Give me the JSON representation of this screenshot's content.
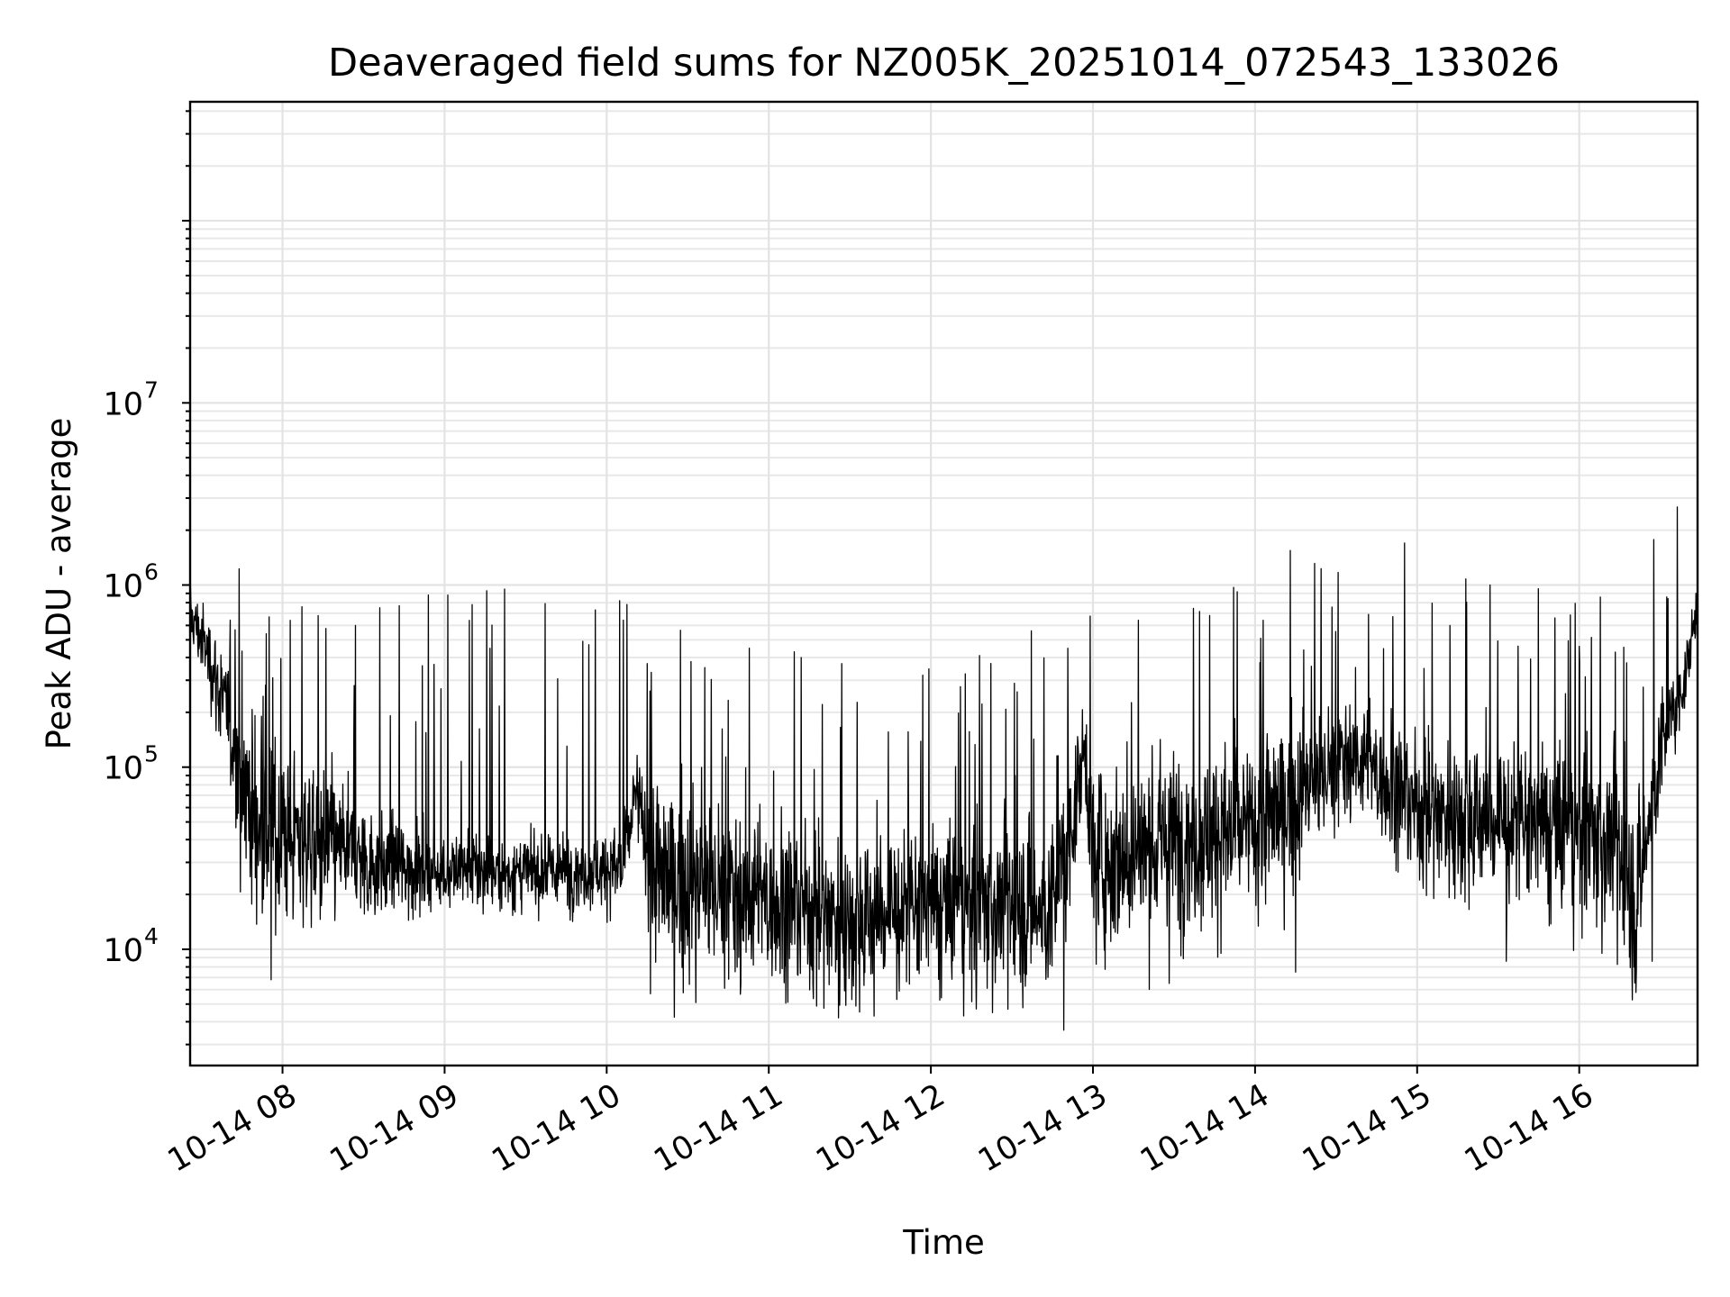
{
  "chart_data": {
    "type": "line",
    "title": "Deaveraged field sums for NZ005K_20251014_072543_133026",
    "xlabel": "Time",
    "ylabel": "Peak ADU - average",
    "yscale": "log",
    "ylim": [
      2300,
      450000000
    ],
    "xlim_hours": [
      7.43,
      16.73
    ],
    "grid": true,
    "legend": "none",
    "line_color": "#000000",
    "x_ticks": [
      {
        "hour": 8,
        "label": "10-14 08"
      },
      {
        "hour": 9,
        "label": "10-14 09"
      },
      {
        "hour": 10,
        "label": "10-14 10"
      },
      {
        "hour": 11,
        "label": "10-14 11"
      },
      {
        "hour": 12,
        "label": "10-14 12"
      },
      {
        "hour": 13,
        "label": "10-14 13"
      },
      {
        "hour": 14,
        "label": "10-14 14"
      },
      {
        "hour": 15,
        "label": "10-14 15"
      },
      {
        "hour": 16,
        "label": "10-14 16"
      }
    ],
    "y_ticks": [
      {
        "value": 10000,
        "base": "10",
        "exp": "4"
      },
      {
        "value": 100000,
        "base": "10",
        "exp": "5"
      },
      {
        "value": 1000000,
        "base": "10",
        "exp": "6"
      },
      {
        "value": 10000000,
        "base": "10",
        "exp": "7"
      }
    ],
    "series": [
      {
        "name": "deaveraged field sum",
        "sample_interval_hours": 0.0025,
        "profile": [
          {
            "t": 7.43,
            "base": 700000,
            "spread": 0.15
          },
          {
            "t": 7.55,
            "base": 400000,
            "spread": 0.2
          },
          {
            "t": 7.65,
            "base": 200000,
            "spread": 0.3
          },
          {
            "t": 7.75,
            "base": 90000,
            "spread": 0.45
          },
          {
            "t": 7.85,
            "base": 45000,
            "spread": 0.5
          },
          {
            "t": 8.2,
            "base": 40000,
            "spread": 0.4
          },
          {
            "t": 8.6,
            "base": 28000,
            "spread": 0.25
          },
          {
            "t": 9.5,
            "base": 26000,
            "spread": 0.18
          },
          {
            "t": 10.1,
            "base": 28000,
            "spread": 0.2
          },
          {
            "t": 10.18,
            "base": 70000,
            "spread": 0.25
          },
          {
            "t": 10.3,
            "base": 25000,
            "spread": 0.45
          },
          {
            "t": 10.6,
            "base": 22000,
            "spread": 0.45
          },
          {
            "t": 11.5,
            "base": 15000,
            "spread": 0.42
          },
          {
            "t": 12.3,
            "base": 18000,
            "spread": 0.42
          },
          {
            "t": 12.75,
            "base": 16000,
            "spread": 0.42
          },
          {
            "t": 12.85,
            "base": 40000,
            "spread": 0.4
          },
          {
            "t": 12.95,
            "base": 130000,
            "spread": 0.2
          },
          {
            "t": 13.0,
            "base": 30000,
            "spread": 0.45
          },
          {
            "t": 13.5,
            "base": 40000,
            "spread": 0.45
          },
          {
            "t": 14.0,
            "base": 45000,
            "spread": 0.45
          },
          {
            "t": 14.6,
            "base": 120000,
            "spread": 0.3
          },
          {
            "t": 15.0,
            "base": 60000,
            "spread": 0.38
          },
          {
            "t": 15.5,
            "base": 50000,
            "spread": 0.42
          },
          {
            "t": 16.2,
            "base": 40000,
            "spread": 0.45
          },
          {
            "t": 16.35,
            "base": 18000,
            "spread": 0.45
          },
          {
            "t": 16.5,
            "base": 120000,
            "spread": 0.3
          },
          {
            "t": 16.65,
            "base": 300000,
            "spread": 0.15
          },
          {
            "t": 16.73,
            "base": 800000,
            "spread": 0.1
          }
        ],
        "spikes": [
          {
            "t": 7.9,
            "v": 540000
          },
          {
            "t": 8.12,
            "v": 760000
          },
          {
            "t": 8.45,
            "v": 600000
          },
          {
            "t": 8.6,
            "v": 750000
          },
          {
            "t": 8.72,
            "v": 770000
          },
          {
            "t": 8.9,
            "v": 880000
          },
          {
            "t": 9.02,
            "v": 880000
          },
          {
            "t": 9.17,
            "v": 780000
          },
          {
            "t": 9.26,
            "v": 930000
          },
          {
            "t": 9.37,
            "v": 950000
          },
          {
            "t": 9.62,
            "v": 790000
          },
          {
            "t": 9.93,
            "v": 730000
          },
          {
            "t": 10.08,
            "v": 820000
          },
          {
            "t": 10.25,
            "v": 370000
          },
          {
            "t": 10.52,
            "v": 380000
          },
          {
            "t": 10.88,
            "v": 450000
          },
          {
            "t": 11.2,
            "v": 400000
          },
          {
            "t": 11.45,
            "v": 370000
          },
          {
            "t": 11.95,
            "v": 320000
          },
          {
            "t": 12.3,
            "v": 410000
          },
          {
            "t": 12.62,
            "v": 560000
          },
          {
            "t": 13.28,
            "v": 640000
          },
          {
            "t": 13.72,
            "v": 680000
          },
          {
            "t": 14.05,
            "v": 640000
          },
          {
            "t": 14.3,
            "v": 440000
          },
          {
            "t": 14.7,
            "v": 690000
          },
          {
            "t": 14.85,
            "v": 670000
          },
          {
            "t": 15.3,
            "v": 1080000
          },
          {
            "t": 15.45,
            "v": 1000000
          },
          {
            "t": 15.85,
            "v": 660000
          },
          {
            "t": 16.0,
            "v": 460000
          }
        ],
        "dips": [
          {
            "t": 7.93,
            "v": 6800
          },
          {
            "t": 10.27,
            "v": 5700
          },
          {
            "t": 10.55,
            "v": 5100
          },
          {
            "t": 11.43,
            "v": 4200
          },
          {
            "t": 11.65,
            "v": 4300
          },
          {
            "t": 12.28,
            "v": 4700
          },
          {
            "t": 12.82,
            "v": 3600
          },
          {
            "t": 13.47,
            "v": 6500
          },
          {
            "t": 14.25,
            "v": 7500
          },
          {
            "t": 15.55,
            "v": 8600
          },
          {
            "t": 16.35,
            "v": 5800
          },
          {
            "t": 16.45,
            "v": 8600
          }
        ]
      }
    ]
  }
}
